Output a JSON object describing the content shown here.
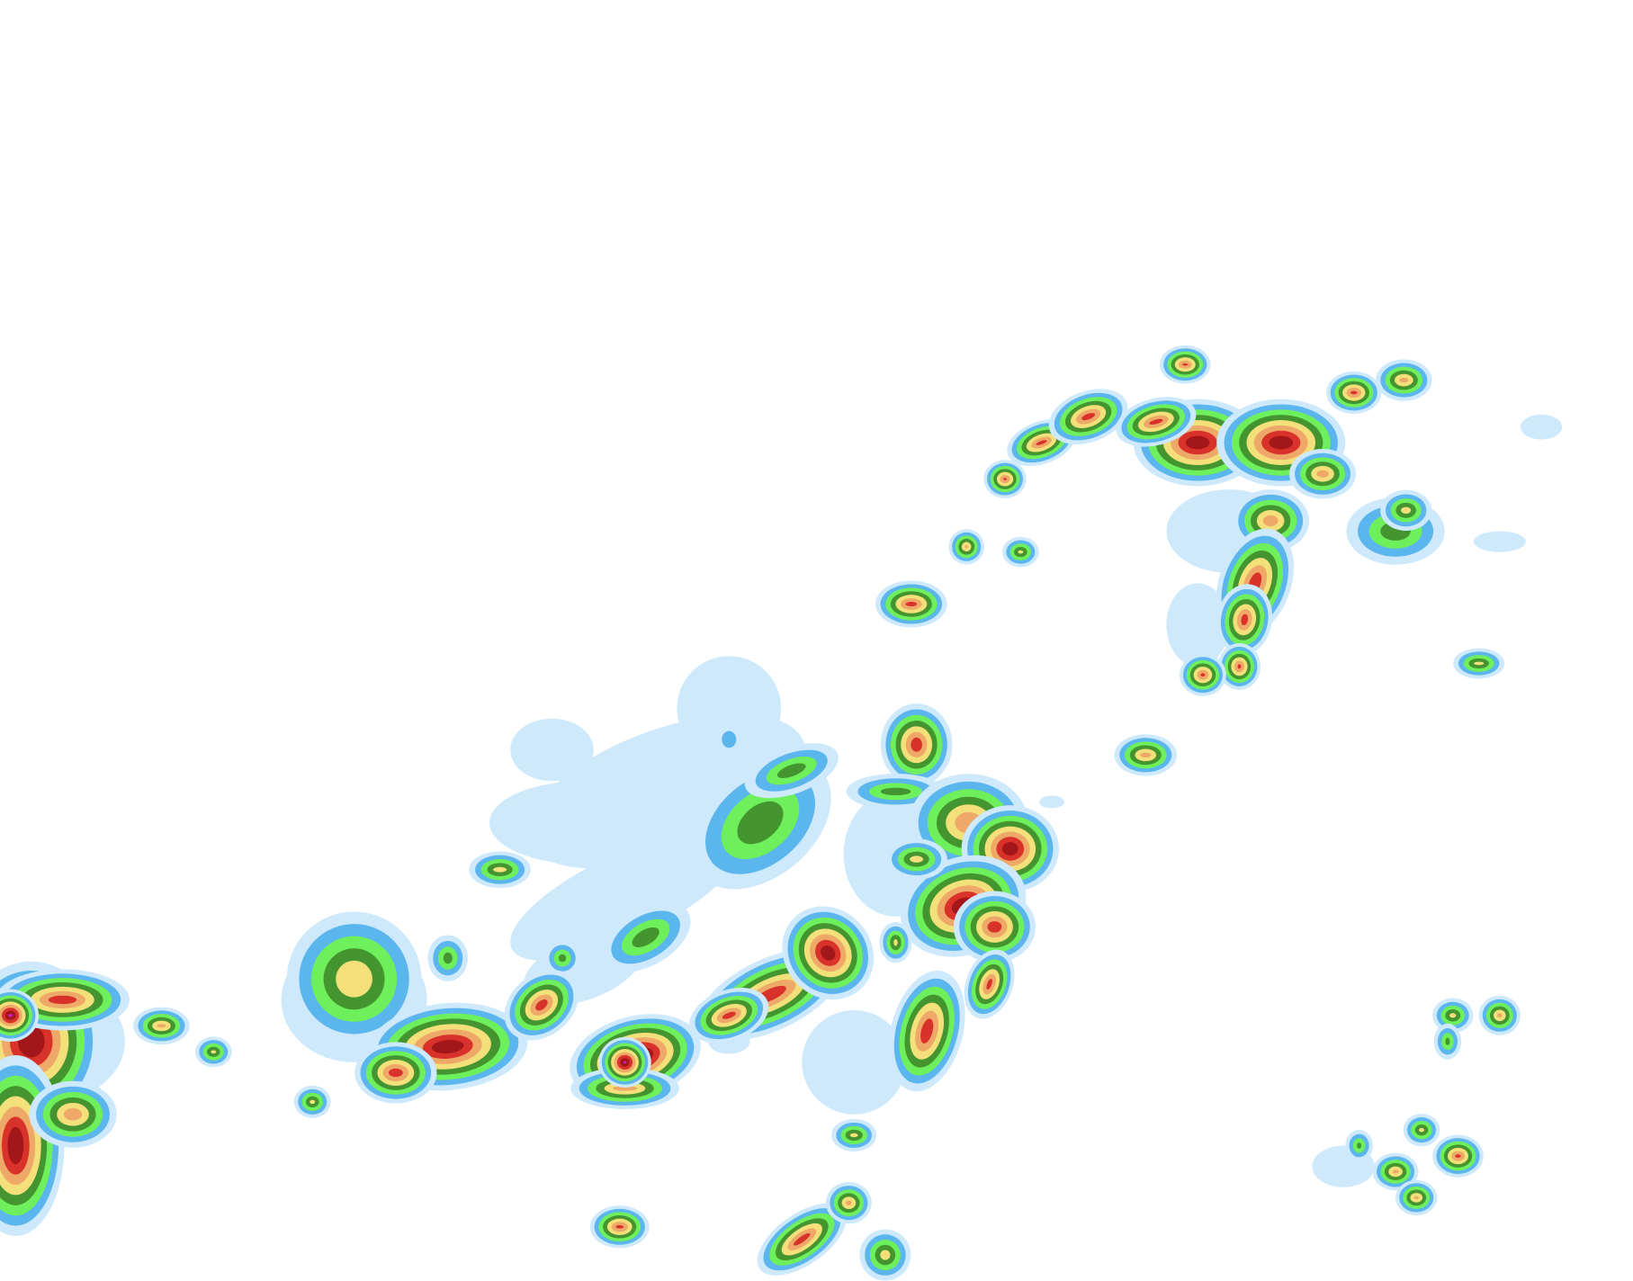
{
  "map": {
    "type": "precipitation-radar",
    "palette": {
      "very_light": "#cde9fb",
      "light": "#5cb6ee",
      "moderate": "#6ef05c",
      "moderate_heavy": "#44952f",
      "heavy": "#f3e07a",
      "heavier": "#eea868",
      "intense": "#d8322a",
      "very_intense": "#a3161a",
      "extreme": "#d41cd6"
    }
  }
}
